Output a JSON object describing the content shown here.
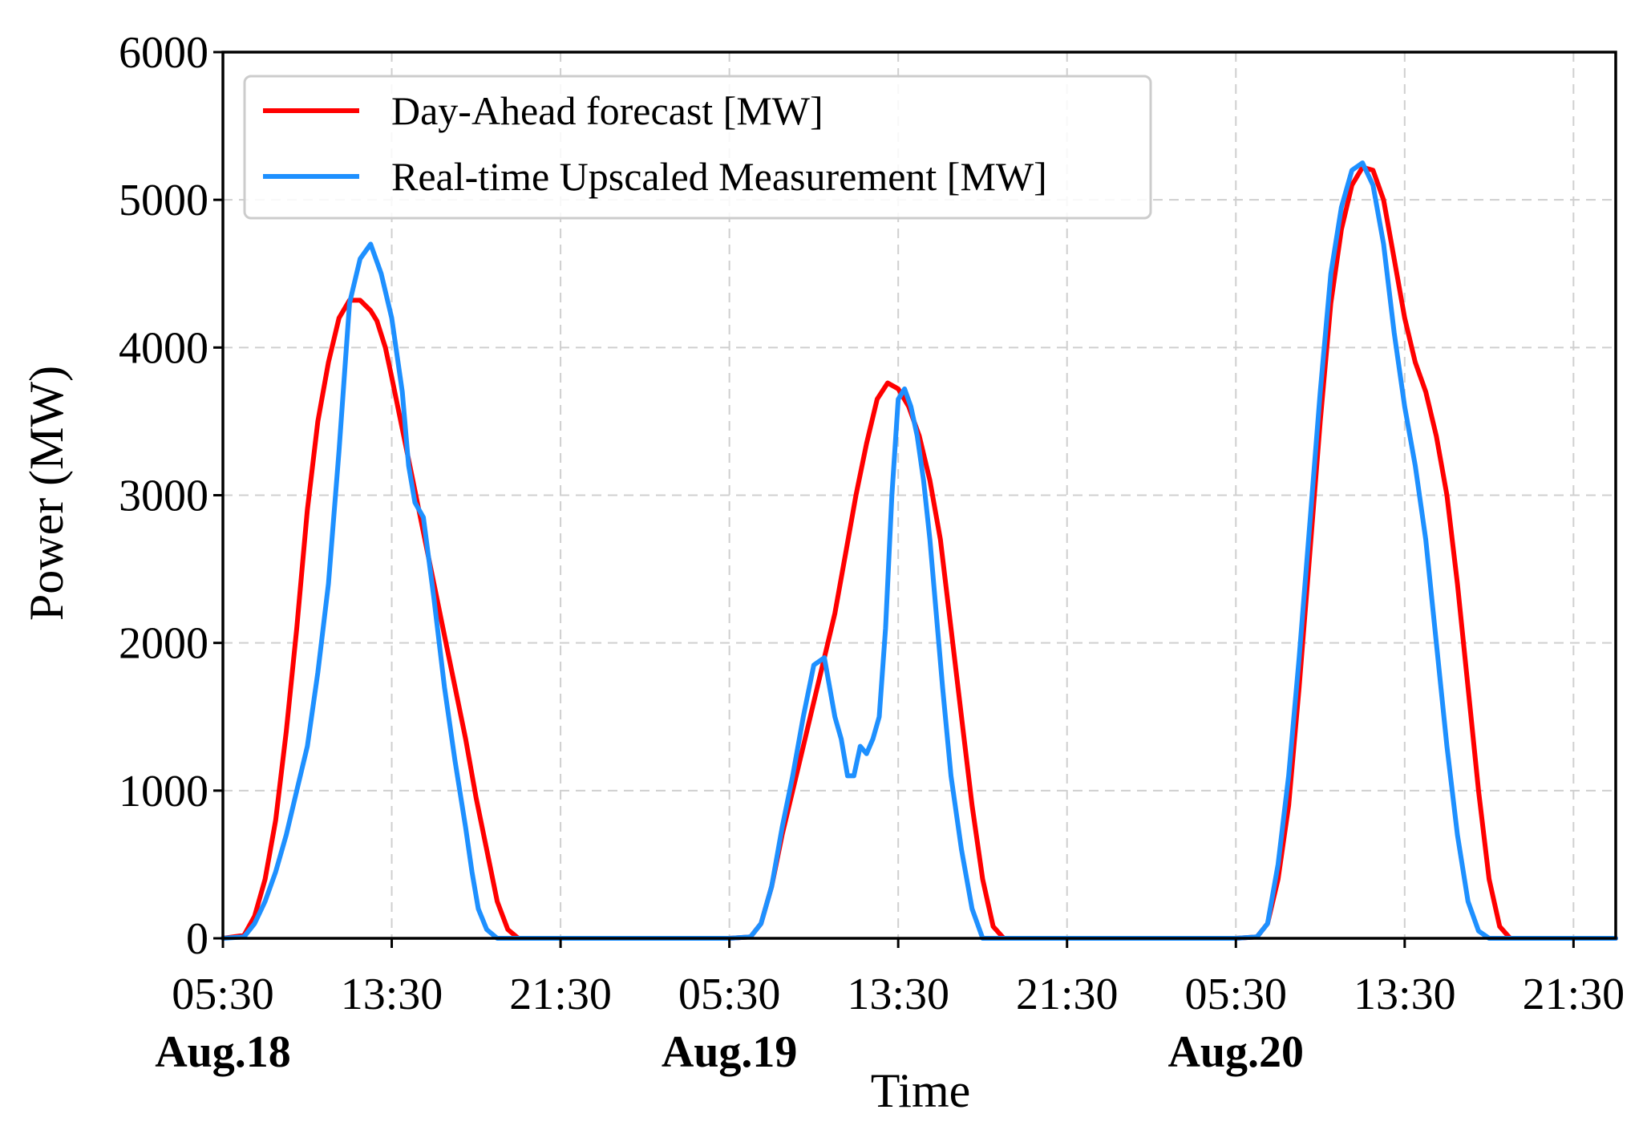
{
  "chart_data": {
    "type": "line",
    "xlabel": "Time",
    "ylabel": "Power (MW)",
    "ylim": [
      0,
      6000
    ],
    "xlim": [
      5.5,
      71.5
    ],
    "x_unit": "hours since Aug.18 00:00",
    "grid": true,
    "legend_position": "top-left",
    "yticks": [
      {
        "value": 0,
        "label": "0"
      },
      {
        "value": 1000,
        "label": "1000"
      },
      {
        "value": 2000,
        "label": "2000"
      },
      {
        "value": 3000,
        "label": "3000"
      },
      {
        "value": 4000,
        "label": "4000"
      },
      {
        "value": 5000,
        "label": "5000"
      },
      {
        "value": 6000,
        "label": "6000"
      }
    ],
    "xticks": [
      {
        "value": 5.5,
        "label": "05:30"
      },
      {
        "value": 13.5,
        "label": "13:30"
      },
      {
        "value": 21.5,
        "label": "21:30"
      },
      {
        "value": 29.5,
        "label": "05:30"
      },
      {
        "value": 37.5,
        "label": "13:30"
      },
      {
        "value": 45.5,
        "label": "21:30"
      },
      {
        "value": 53.5,
        "label": "05:30"
      },
      {
        "value": 61.5,
        "label": "13:30"
      },
      {
        "value": 69.5,
        "label": "21:30"
      }
    ],
    "date_labels": [
      {
        "value": 5.5,
        "label": "Aug.18"
      },
      {
        "value": 29.5,
        "label": "Aug.19"
      },
      {
        "value": 53.5,
        "label": "Aug.20"
      }
    ],
    "series": [
      {
        "name": "Day-Ahead forecast [MW]",
        "color": "#ff0000",
        "x": [
          5.5,
          6.5,
          7.0,
          7.5,
          8.0,
          8.5,
          9.0,
          9.5,
          10.0,
          10.5,
          11.0,
          11.5,
          12.0,
          12.5,
          12.8,
          13.2,
          13.5,
          14.0,
          14.5,
          15.0,
          15.5,
          16.0,
          16.5,
          17.0,
          17.5,
          18.0,
          18.5,
          19.0,
          19.5,
          20.0,
          20.5,
          21.0,
          21.5,
          29.5,
          30.5,
          31.0,
          31.5,
          32.0,
          32.5,
          33.0,
          33.5,
          34.0,
          34.5,
          35.0,
          35.5,
          36.0,
          36.5,
          37.0,
          37.5,
          38.0,
          38.5,
          39.0,
          39.5,
          40.0,
          40.5,
          41.0,
          41.5,
          42.0,
          42.5,
          43.0,
          43.5,
          44.0,
          44.5,
          45.0,
          45.5,
          53.5,
          54.5,
          55.0,
          55.5,
          56.0,
          56.5,
          57.0,
          57.5,
          58.0,
          58.5,
          59.0,
          59.5,
          60.0,
          60.5,
          61.0,
          61.5,
          62.0,
          62.5,
          63.0,
          63.5,
          64.0,
          64.5,
          65.0,
          65.5,
          66.0,
          66.5,
          67.0,
          67.5,
          68.0,
          68.5,
          69.0,
          69.5,
          71.5
        ],
        "values": [
          0,
          20,
          150,
          400,
          800,
          1400,
          2100,
          2900,
          3500,
          3900,
          4200,
          4320,
          4320,
          4250,
          4180,
          4000,
          3800,
          3450,
          3100,
          2750,
          2400,
          2050,
          1700,
          1350,
          950,
          600,
          250,
          60,
          0,
          0,
          0,
          0,
          0,
          0,
          10,
          100,
          350,
          700,
          1000,
          1300,
          1600,
          1900,
          2200,
          2600,
          3000,
          3350,
          3650,
          3760,
          3720,
          3600,
          3400,
          3100,
          2700,
          2100,
          1500,
          900,
          400,
          80,
          0,
          0,
          0,
          0,
          0,
          0,
          0,
          0,
          10,
          100,
          400,
          900,
          1700,
          2600,
          3500,
          4300,
          4800,
          5100,
          5220,
          5200,
          5000,
          4600,
          4200,
          3900,
          3700,
          3400,
          3000,
          2400,
          1700,
          1000,
          400,
          80,
          0,
          0,
          0,
          0,
          0,
          0,
          0,
          0
        ],
        "values_note": "values align with x"
      },
      {
        "name": "Real-time Upscaled Measurement [MW]",
        "color": "#1e90ff",
        "x": [
          5.5,
          6.5,
          7.0,
          7.5,
          8.0,
          8.5,
          9.0,
          9.5,
          10.0,
          10.5,
          11.0,
          11.5,
          12.0,
          12.5,
          13.0,
          13.5,
          14.0,
          14.3,
          14.6,
          15.0,
          15.5,
          16.0,
          16.5,
          17.0,
          17.3,
          17.6,
          18.0,
          18.5,
          19.0,
          19.5,
          20.0,
          20.5,
          21.0,
          21.5,
          29.5,
          30.5,
          31.0,
          31.5,
          32.0,
          32.5,
          33.0,
          33.5,
          34.0,
          34.5,
          34.8,
          35.1,
          35.4,
          35.7,
          36.0,
          36.3,
          36.6,
          36.9,
          37.2,
          37.5,
          37.8,
          38.1,
          38.4,
          38.7,
          39.0,
          39.3,
          39.6,
          40.0,
          40.5,
          41.0,
          41.5,
          42.0,
          42.5,
          43.0,
          43.5,
          44.0,
          44.5,
          45.0,
          45.5,
          53.5,
          54.5,
          55.0,
          55.5,
          56.0,
          56.5,
          57.0,
          57.5,
          58.0,
          58.5,
          59.0,
          59.5,
          60.0,
          60.5,
          61.0,
          61.5,
          62.0,
          62.5,
          63.0,
          63.5,
          64.0,
          64.5,
          65.0,
          65.5,
          66.0,
          66.5,
          67.0,
          67.5,
          68.0,
          68.5,
          69.0,
          69.5,
          71.5
        ],
        "values": [
          0,
          10,
          100,
          250,
          450,
          700,
          1000,
          1300,
          1800,
          2400,
          3300,
          4300,
          4600,
          4700,
          4500,
          4200,
          3700,
          3200,
          2950,
          2850,
          2300,
          1700,
          1200,
          750,
          450,
          200,
          60,
          0,
          0,
          0,
          0,
          0,
          0,
          0,
          0,
          10,
          100,
          350,
          750,
          1100,
          1500,
          1850,
          1900,
          1500,
          1350,
          1100,
          1100,
          1300,
          1250,
          1350,
          1500,
          2100,
          3000,
          3650,
          3720,
          3600,
          3400,
          3100,
          2700,
          2200,
          1700,
          1100,
          600,
          200,
          0,
          0,
          0,
          0,
          0,
          0,
          0,
          0,
          0,
          0,
          10,
          100,
          500,
          1100,
          1900,
          2800,
          3700,
          4500,
          4950,
          5200,
          5250,
          5100,
          4700,
          4100,
          3600,
          3200,
          2700,
          2000,
          1300,
          700,
          250,
          50,
          0,
          0,
          0,
          0,
          0,
          0,
          0,
          0,
          0,
          0
        ]
      }
    ]
  }
}
